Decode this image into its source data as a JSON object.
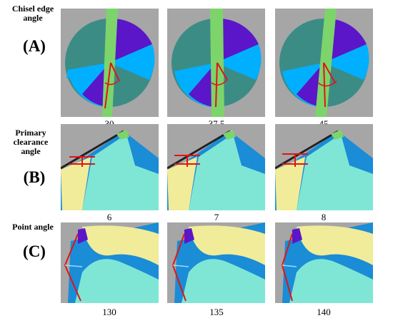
{
  "rows": [
    {
      "title": "Chisel edge angle",
      "letter": "(A)",
      "values": [
        "30",
        "37.5",
        "45"
      ],
      "icon": "drill-end-view"
    },
    {
      "title": "Primary clearance angle",
      "letter": "(B)",
      "values": [
        "6",
        "7",
        "8"
      ],
      "icon": "drill-clearance-view"
    },
    {
      "title": "Point angle",
      "letter": "(C)",
      "values": [
        "130",
        "135",
        "140"
      ],
      "icon": "drill-point-view"
    }
  ],
  "colors": {
    "background": "#a6a6a6",
    "body": "#3c8c86",
    "cyan": "#00b0ff",
    "purple": "#5a16c8",
    "green": "#7dd46a",
    "blue": "#1b8cd6",
    "teal": "#7fe6d6",
    "yellow": "#f0ec9a",
    "red": "#e01414"
  }
}
